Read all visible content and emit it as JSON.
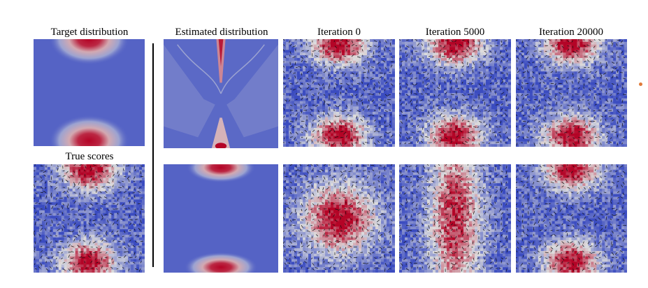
{
  "figure": {
    "titles": {
      "target": "Target distribution",
      "estimated": "Estimated distribution",
      "iter0": "Iteration  0",
      "iter5000": "Iteration  5000",
      "iter20000": "Iteration  20000",
      "true_scores": "True scores"
    },
    "colormap": {
      "low": "#3b4cc0",
      "mid": "#dddddd",
      "high": "#b40426"
    },
    "rows": [
      {
        "row": "top",
        "panels": [
          {
            "key": "target",
            "style": "smooth",
            "modes": "two-top-bottom"
          },
          {
            "key": "estimated",
            "style": "smooth-artifact",
            "modes": "concentrated-top-bottom-streaks"
          },
          {
            "key": "iter0",
            "style": "quiver",
            "modes": "two-top-bottom"
          },
          {
            "key": "iter5000",
            "style": "quiver",
            "modes": "two-top-bottom"
          },
          {
            "key": "iter20000",
            "style": "quiver",
            "modes": "two-top-bottom"
          }
        ]
      },
      {
        "row": "bottom",
        "panels": [
          {
            "key": "true_scores",
            "style": "quiver",
            "modes": "two-top-bottom"
          },
          {
            "key": "estimated",
            "style": "smooth",
            "modes": "two-top-bottom-narrow"
          },
          {
            "key": "iter0",
            "style": "quiver",
            "modes": "single-center"
          },
          {
            "key": "iter5000",
            "style": "quiver",
            "modes": "vertical-band"
          },
          {
            "key": "iter20000",
            "style": "quiver",
            "modes": "two-top-bottom"
          }
        ]
      }
    ]
  }
}
